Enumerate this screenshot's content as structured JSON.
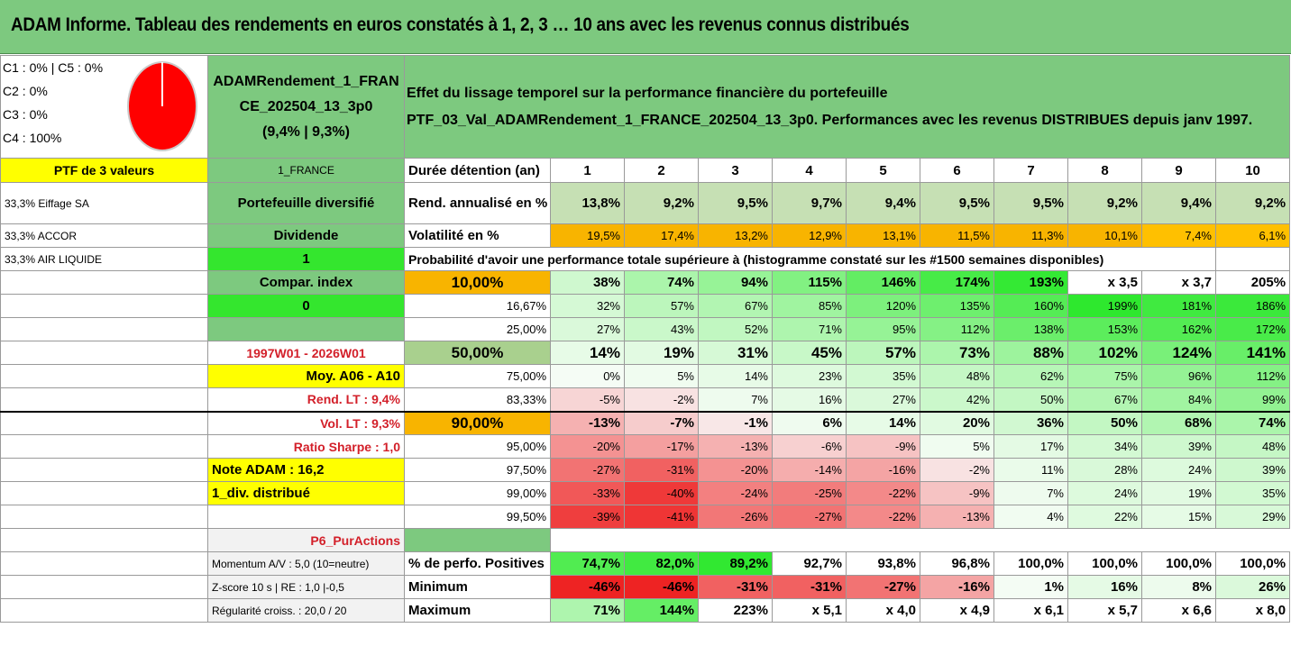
{
  "title": "ADAM Informe. Tableau des rendements en euros constatés à 1, 2, 3 … 10 ans avec les revenus connus distribués",
  "legend": [
    "C1 : 0% | C5 : 0%",
    "C2 : 0%",
    "C3 : 0%",
    "C4 : 100%"
  ],
  "pie": {
    "slices": [
      {
        "label": "C4",
        "value": 100,
        "color": "#ff0000"
      }
    ]
  },
  "fund": {
    "name_l1": "ADAMRendement_1_FRAN",
    "name_l2": "CE_202504_13_3p0",
    "perf": "(9,4% | 9,3%)"
  },
  "header": {
    "line1": "Effet du lissage temporel sur la performance financière du portefeuille",
    "line2": "PTF_03_Val_ADAMRendement_1_FRANCE_202504_13_3p0. Performances avec les revenus DISTRIBUES depuis janv 1997."
  },
  "left": {
    "ptf": "PTF de 3 valeurs",
    "holdings": [
      "33,3% Eiffage SA",
      "33,3% ACCOR",
      "33,3% AIR LIQUIDE"
    ]
  },
  "col1": {
    "country": "1_FRANCE",
    "diversified": "Portefeuille diversifié",
    "dividende": "Dividende",
    "one": "1",
    "compar": "Compar. index",
    "zero": "0",
    "period": "1997W01 - 2026W01",
    "moy": "Moy. A06 - A10",
    "rend_lt": "Rend. LT : 9,4%",
    "vol_lt": "Vol. LT : 9,3%",
    "sharpe": "Ratio Sharpe : 1,0",
    "note": "Note ADAM : 16,2",
    "div": "1_div. distribué",
    "p6": "P6_PurActions",
    "momentum": "Momentum A/V : 5,0 (10=neutre)",
    "zscore": "Z-score 10 s | RE : 1,0 |-0,5",
    "regularite": "Régularité croiss. : 20,0 / 20"
  },
  "table": {
    "duree_label": "Durée détention (an)",
    "years": [
      "1",
      "2",
      "3",
      "4",
      "5",
      "6",
      "7",
      "8",
      "9",
      "10"
    ],
    "rend_label": "Rend. annualisé en %",
    "rend": [
      "13,8%",
      "9,2%",
      "9,5%",
      "9,7%",
      "9,4%",
      "9,5%",
      "9,5%",
      "9,2%",
      "9,4%",
      "9,2%"
    ],
    "vol_label": "Volatilité en %",
    "vol": [
      "19,5%",
      "17,4%",
      "13,2%",
      "12,9%",
      "13,1%",
      "11,5%",
      "11,3%",
      "10,1%",
      "7,4%",
      "6,1%"
    ],
    "prob_label": "Probabilité d'avoir une performance totale supérieure à (histogramme constaté sur les #1500 semaines disponibles)",
    "quantiles": [
      {
        "q": "10,00%",
        "values": [
          "38%",
          "74%",
          "94%",
          "115%",
          "146%",
          "174%",
          "193%",
          "x 3,5",
          "x 3,7",
          "205%"
        ]
      },
      {
        "q": "16,67%",
        "values": [
          "32%",
          "57%",
          "67%",
          "85%",
          "120%",
          "135%",
          "160%",
          "199%",
          "181%",
          "186%"
        ]
      },
      {
        "q": "25,00%",
        "values": [
          "27%",
          "43%",
          "52%",
          "71%",
          "95%",
          "112%",
          "138%",
          "153%",
          "162%",
          "172%"
        ]
      },
      {
        "q": "50,00%",
        "values": [
          "14%",
          "19%",
          "31%",
          "45%",
          "57%",
          "73%",
          "88%",
          "102%",
          "124%",
          "141%"
        ]
      },
      {
        "q": "75,00%",
        "values": [
          "0%",
          "5%",
          "14%",
          "23%",
          "35%",
          "48%",
          "62%",
          "75%",
          "96%",
          "112%"
        ]
      },
      {
        "q": "83,33%",
        "values": [
          "-5%",
          "-2%",
          "7%",
          "16%",
          "27%",
          "42%",
          "50%",
          "67%",
          "84%",
          "99%"
        ]
      },
      {
        "q": "90,00%",
        "values": [
          "-13%",
          "-7%",
          "-1%",
          "6%",
          "14%",
          "20%",
          "36%",
          "50%",
          "68%",
          "74%"
        ]
      },
      {
        "q": "95,00%",
        "values": [
          "-20%",
          "-17%",
          "-13%",
          "-6%",
          "-9%",
          "5%",
          "17%",
          "34%",
          "39%",
          "48%"
        ]
      },
      {
        "q": "97,50%",
        "values": [
          "-27%",
          "-31%",
          "-20%",
          "-14%",
          "-16%",
          "-2%",
          "11%",
          "28%",
          "24%",
          "39%"
        ]
      },
      {
        "q": "99,00%",
        "values": [
          "-33%",
          "-40%",
          "-24%",
          "-25%",
          "-22%",
          "-9%",
          "7%",
          "24%",
          "19%",
          "35%"
        ]
      },
      {
        "q": "99,50%",
        "values": [
          "-39%",
          "-41%",
          "-26%",
          "-27%",
          "-22%",
          "-13%",
          "4%",
          "22%",
          "15%",
          "29%"
        ]
      }
    ],
    "pos_label": "% de perfo. Positives",
    "pos": [
      "74,7%",
      "82,0%",
      "89,2%",
      "92,7%",
      "93,8%",
      "96,8%",
      "100,0%",
      "100,0%",
      "100,0%",
      "100,0%"
    ],
    "min_label": "Minimum",
    "min": [
      "-46%",
      "-46%",
      "-31%",
      "-31%",
      "-27%",
      "-16%",
      "1%",
      "16%",
      "8%",
      "26%"
    ],
    "max_label": "Maximum",
    "max": [
      "71%",
      "144%",
      "223%",
      "x 5,1",
      "x 4,0",
      "x 4,9",
      "x 6,1",
      "x 5,7",
      "x 6,6",
      "x 8,0"
    ]
  },
  "colors": {
    "title_bg": "#7dc97f",
    "yellow": "#ffff00",
    "lime": "#34e62e",
    "orange": "#f8b400",
    "olive": "#a9d08e",
    "red_text": "#d3202a"
  }
}
